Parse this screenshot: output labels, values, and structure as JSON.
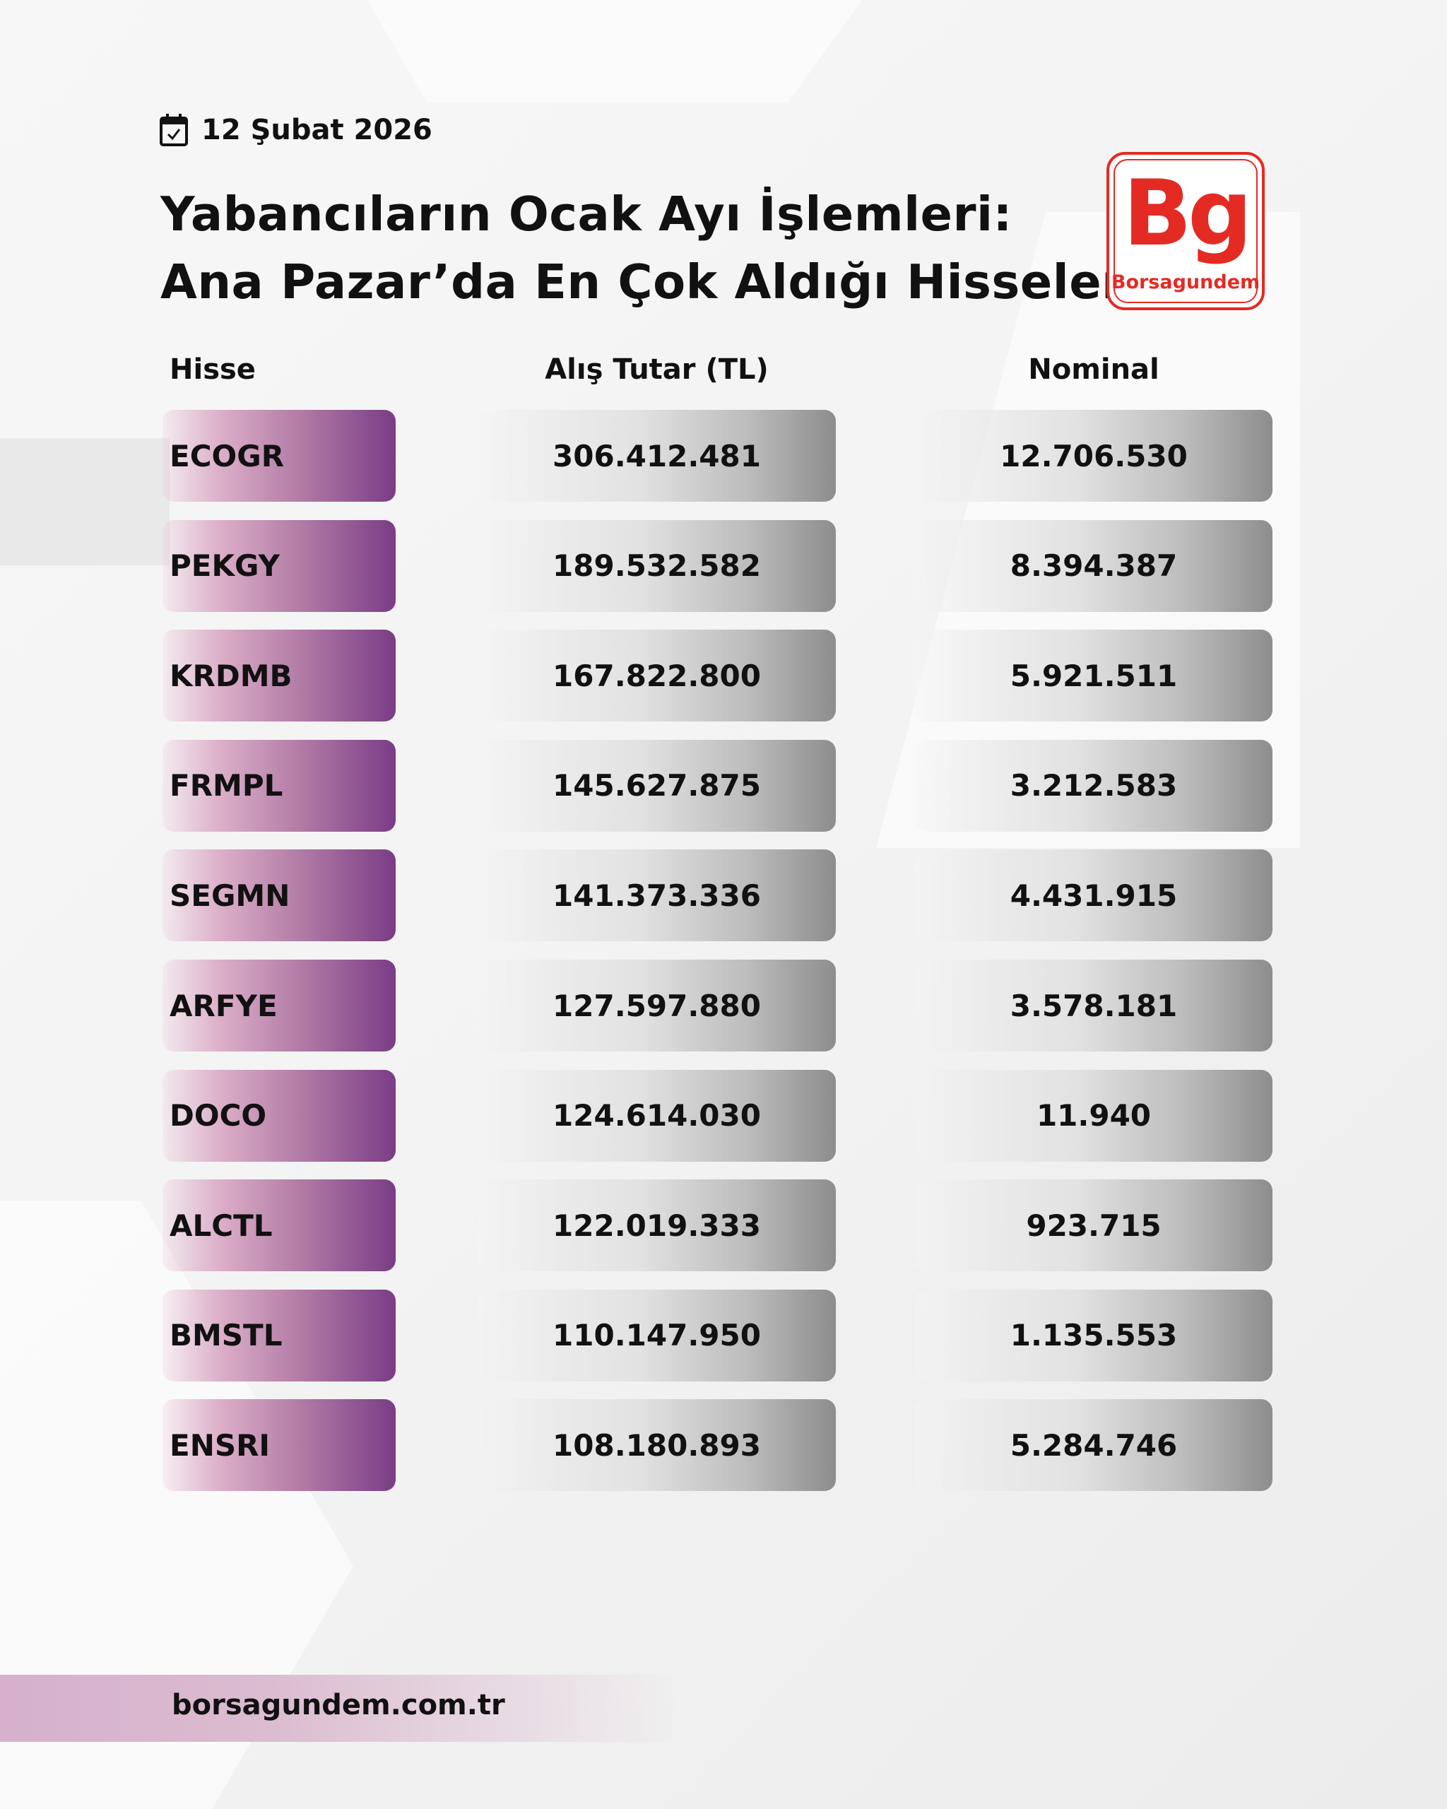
{
  "date": {
    "icon": "calendar-check-icon",
    "text": "12 Şubat 2026"
  },
  "title": {
    "line1": "Yabancıların Ocak Ayı İşlemleri:",
    "line2": "Ana Pazar’da En Çok Aldığı Hisseler"
  },
  "logo": {
    "mark": "Bg",
    "name": "Borsagundem",
    "color": "#e32b24"
  },
  "table": {
    "headers": [
      "Hisse",
      "Alış Tutar (TL)",
      "Nominal"
    ],
    "rows": [
      [
        "ECOGR",
        "306.412.481",
        "12.706.530"
      ],
      [
        "PEKGY",
        "189.532.582",
        "8.394.387"
      ],
      [
        "KRDMB",
        "167.822.800",
        "5.921.511"
      ],
      [
        "FRMPL",
        "145.627.875",
        "3.212.583"
      ],
      [
        "SEGMN",
        "141.373.336",
        "4.431.915"
      ],
      [
        "ARFYE",
        "127.597.880",
        "3.578.181"
      ],
      [
        "DOCO",
        "124.614.030",
        "11.940"
      ],
      [
        "ALCTL",
        "122.019.333",
        "923.715"
      ],
      [
        "BMSTL",
        "110.147.950",
        "1.135.553"
      ],
      [
        "ENSRI",
        "108.180.893",
        "5.284.746"
      ]
    ]
  },
  "footer": {
    "website": "borsagundem.com.tr"
  },
  "colors": {
    "accent_purple": "#7a3c86",
    "brand_red": "#e32b24"
  }
}
